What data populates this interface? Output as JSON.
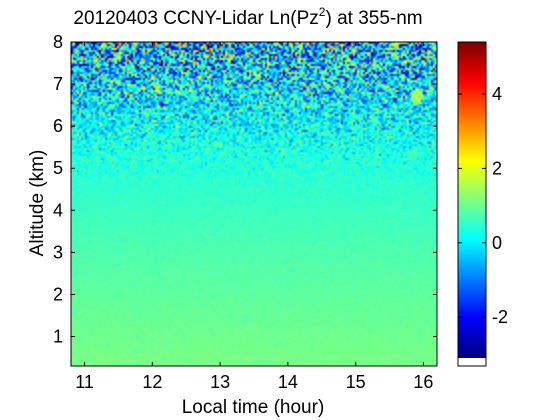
{
  "chart_data": {
    "type": "heatmap",
    "title": {
      "prefix": "20120403 CCNY-Lidar Ln(Pz",
      "superscript": "2",
      "suffix": ") at 355-nm"
    },
    "xlabel": "Local time (hour)",
    "ylabel": "Altitude (km)",
    "xlim": [
      10.8,
      16.2
    ],
    "ylim": [
      0.3,
      8.0
    ],
    "x_ticks": [
      "11",
      "12",
      "13",
      "14",
      "15",
      "16"
    ],
    "y_ticks": [
      "1",
      "2",
      "3",
      "4",
      "5",
      "6",
      "7",
      "8"
    ],
    "colorbar": {
      "colormap": "jet",
      "range": [
        -3.1,
        5.4
      ],
      "ticks": [
        "-2",
        "0",
        "2",
        "4"
      ]
    },
    "field": {
      "description_levels": [
        {
          "altitude_km": 0.3,
          "value": 1.1
        },
        {
          "altitude_km": 1.5,
          "value": 0.95
        },
        {
          "altitude_km": 3.0,
          "value": 0.75
        },
        {
          "altitude_km": 4.5,
          "value": 0.5
        },
        {
          "altitude_km": 5.5,
          "value": 0.3
        },
        {
          "altitude_km": 6.5,
          "value": -0.05
        },
        {
          "altitude_km": 8.0,
          "value": -0.4
        }
      ],
      "noise_onset_km": 4.3,
      "cloud_feature": {
        "time_hour": 15.9,
        "altitude_km": 6.7,
        "value": 1.4
      }
    }
  }
}
